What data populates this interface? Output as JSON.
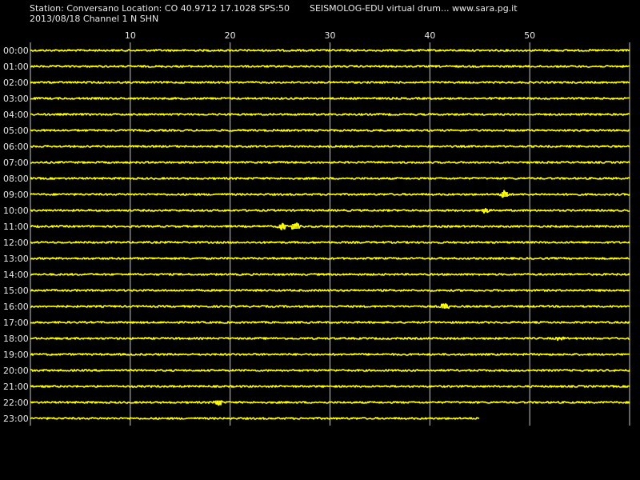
{
  "header": {
    "station_line": "Station: Conversano Location: CO 40.9712 17.1028 SPS:50",
    "title": "SEISMOLOG-EDU virtual drum... www.sara.pg.it",
    "date_line": "2013/08/18  Channel 1 N SHN"
  },
  "colors": {
    "background": "#000000",
    "trace": "#ffff00",
    "grid": "#c8c8c8",
    "text": "#e8e8e8"
  },
  "chart_data": {
    "type": "line",
    "title": "SEISMOLOG-EDU virtual drum... www.sara.pg.it",
    "xlabel": "",
    "ylabel": "",
    "x_unit": "minute",
    "xlim": [
      0,
      60
    ],
    "x_ticks": [
      "10",
      "20",
      "30",
      "40",
      "50"
    ],
    "grid": true,
    "legend": "none",
    "rows": [
      {
        "label": "00:00",
        "end_min": 60,
        "events": []
      },
      {
        "label": "01:00",
        "end_min": 60,
        "events": []
      },
      {
        "label": "02:00",
        "end_min": 60,
        "events": []
      },
      {
        "label": "03:00",
        "end_min": 60,
        "events": []
      },
      {
        "label": "04:00",
        "end_min": 60,
        "events": []
      },
      {
        "label": "05:00",
        "end_min": 60,
        "events": []
      },
      {
        "label": "06:00",
        "end_min": 60,
        "events": []
      },
      {
        "label": "07:00",
        "end_min": 60,
        "events": []
      },
      {
        "label": "08:00",
        "end_min": 60,
        "events": []
      },
      {
        "label": "09:00",
        "end_min": 60,
        "events": [
          {
            "minute": 47.5,
            "amp": 5
          }
        ]
      },
      {
        "label": "10:00",
        "end_min": 60,
        "events": [
          {
            "minute": 45.5,
            "amp": 3
          }
        ]
      },
      {
        "label": "11:00",
        "end_min": 60,
        "events": [
          {
            "minute": 25.2,
            "amp": 4
          },
          {
            "minute": 26.5,
            "amp": 5
          }
        ]
      },
      {
        "label": "12:00",
        "end_min": 60,
        "events": []
      },
      {
        "label": "13:00",
        "end_min": 60,
        "events": []
      },
      {
        "label": "14:00",
        "end_min": 60,
        "events": []
      },
      {
        "label": "15:00",
        "end_min": 60,
        "events": []
      },
      {
        "label": "16:00",
        "end_min": 60,
        "events": [
          {
            "minute": 41.5,
            "amp": 4
          }
        ]
      },
      {
        "label": "17:00",
        "end_min": 60,
        "events": []
      },
      {
        "label": "18:00",
        "end_min": 60,
        "events": [
          {
            "minute": 53.0,
            "amp": 2
          }
        ]
      },
      {
        "label": "19:00",
        "end_min": 60,
        "events": []
      },
      {
        "label": "20:00",
        "end_min": 60,
        "events": []
      },
      {
        "label": "21:00",
        "end_min": 60,
        "events": []
      },
      {
        "label": "22:00",
        "end_min": 60,
        "events": [
          {
            "minute": 18.8,
            "amp": 4
          }
        ]
      },
      {
        "label": "23:00",
        "end_min": 45,
        "events": []
      }
    ]
  }
}
